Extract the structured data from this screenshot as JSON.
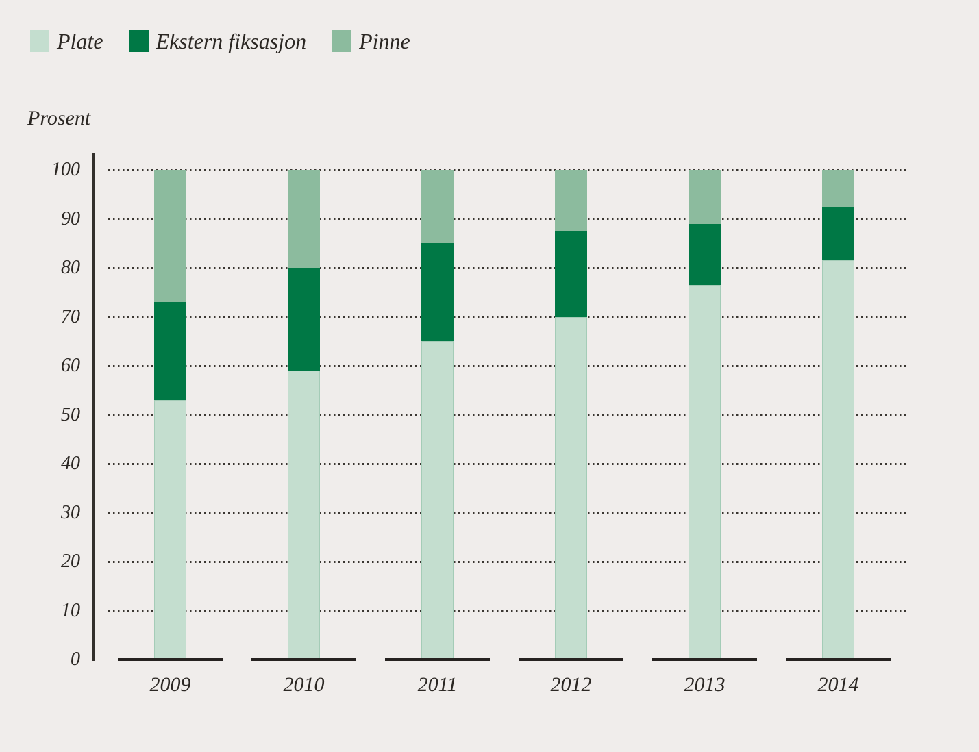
{
  "figure": {
    "ylabel": "Prosent",
    "legend_labels": [
      "Plate",
      "Ekstern fiksasjon",
      "Pinne"
    ]
  },
  "colors": {
    "background": "#f0edeb",
    "text": "#2b2723",
    "axis_line": "#33302c",
    "gridline": "#3a3631",
    "baseline": "#262220",
    "plate": "#c4decf",
    "ekstern_fiksasjon": "#007845",
    "pinne": "#8cbb9e"
  },
  "chart_data": {
    "type": "bar",
    "stacked": true,
    "unit": "percent",
    "title": "",
    "xlabel": "",
    "ylabel": "Prosent",
    "categories": [
      "2009",
      "2010",
      "2011",
      "2012",
      "2013",
      "2014"
    ],
    "series": [
      {
        "name": "Plate",
        "color": "#c4decf",
        "values": [
          53,
          59,
          65,
          70,
          76.5,
          81.5
        ]
      },
      {
        "name": "Ekstern fiksasjon",
        "color": "#007845",
        "values": [
          20,
          21,
          20,
          17.5,
          12.5,
          11
        ]
      },
      {
        "name": "Pinne",
        "color": "#8cbb9e",
        "values": [
          27,
          20,
          15,
          12.5,
          11,
          7.5
        ]
      }
    ],
    "ylim": [
      0,
      100
    ],
    "yticks": [
      0,
      10,
      20,
      30,
      40,
      50,
      60,
      70,
      80,
      90,
      100
    ],
    "grid": "horizontal-dotted",
    "legend_position": "top-left"
  }
}
